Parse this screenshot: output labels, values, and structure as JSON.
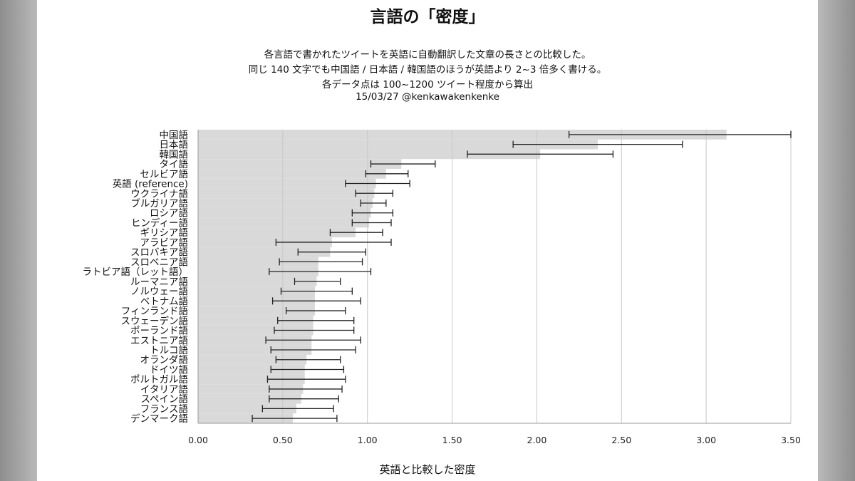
{
  "title": "言語の「密度」",
  "subtitle_lines": [
    "各言語で書かれたツイートを英語に自動翻訳した文章の長さとの比較した。",
    "同じ 140 文字でも中国語 / 日本語 / 韓国語のほうが英語より 2~3 倍多く書ける。",
    "各データ点は 100~1200 ツイート程度から算出",
    "15/03/27  @kenkawakenkenke"
  ],
  "colors": {
    "bar": "#d9d9d9",
    "gridline": "#c8c8c8",
    "errorbar": "#222222"
  },
  "chart_data": {
    "type": "bar",
    "orientation": "horizontal",
    "xlabel": "英語と比較した密度",
    "ylabel": "",
    "xlim": [
      0,
      3.5
    ],
    "xticks": [
      "0.00",
      "0.50",
      "1.00",
      "1.50",
      "2.00",
      "2.50",
      "3.00",
      "3.50"
    ],
    "xtick_values": [
      0,
      0.5,
      1.0,
      1.5,
      2.0,
      2.5,
      3.0,
      3.5
    ],
    "grid": "vertical",
    "categories": [
      "中国語",
      "日本語",
      "韓国語",
      "タイ語",
      "セルビア語",
      "英語 (reference)",
      "ウクライナ語",
      "ブルガリア語",
      "ロシア語",
      "ヒンディー語",
      "ギリシア語",
      "アラビア語",
      "スロバキア語",
      "スロベニア語",
      "ラトビア語（レット語）",
      "ルーマニア語",
      "ノルウェー語",
      "ベトナム語",
      "フィンランド語",
      "スウェーデン語",
      "ポーランド語",
      "エストニア語",
      "トルコ語",
      "オランダ語",
      "ドイツ語",
      "ポルトガル語",
      "イタリア語",
      "スペイン語",
      "フランス語",
      "デンマーク語"
    ],
    "values": [
      3.12,
      2.36,
      2.02,
      1.2,
      1.11,
      1.05,
      1.04,
      1.03,
      1.02,
      1.01,
      0.93,
      0.79,
      0.78,
      0.71,
      0.71,
      0.7,
      0.69,
      0.69,
      0.69,
      0.68,
      0.68,
      0.67,
      0.67,
      0.64,
      0.63,
      0.63,
      0.62,
      0.61,
      0.58,
      0.56
    ],
    "error_low": [
      2.19,
      1.86,
      1.59,
      1.02,
      0.99,
      0.87,
      0.93,
      0.96,
      0.91,
      0.91,
      0.78,
      0.46,
      0.59,
      0.48,
      0.42,
      0.57,
      0.49,
      0.44,
      0.52,
      0.47,
      0.45,
      0.4,
      0.43,
      0.46,
      0.43,
      0.41,
      0.42,
      0.42,
      0.38,
      0.32
    ],
    "error_high": [
      3.5,
      2.86,
      2.45,
      1.4,
      1.24,
      1.25,
      1.15,
      1.11,
      1.15,
      1.14,
      1.09,
      1.14,
      0.99,
      0.97,
      1.02,
      0.84,
      0.91,
      0.96,
      0.87,
      0.92,
      0.92,
      0.96,
      0.93,
      0.84,
      0.86,
      0.87,
      0.85,
      0.83,
      0.8,
      0.82
    ]
  }
}
